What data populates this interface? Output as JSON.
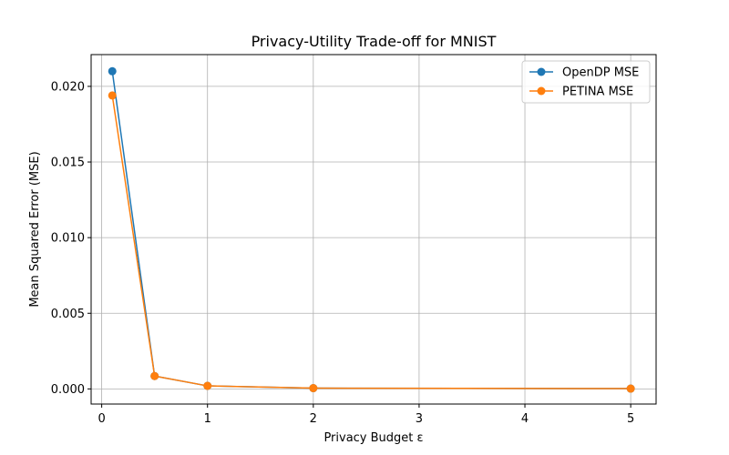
{
  "chart_data": {
    "type": "line",
    "title": "Privacy-Utility Trade-off for MNIST",
    "xlabel": "Privacy Budget ε",
    "ylabel": "Mean Squared Error (MSE)",
    "xlim": [
      -0.1,
      5.24
    ],
    "ylim": [
      -0.001,
      0.0221
    ],
    "xticks": [
      0,
      1,
      2,
      3,
      4,
      5
    ],
    "yticks": [
      0.0,
      0.005,
      0.01,
      0.015,
      0.02
    ],
    "yticklabels": [
      "0.000",
      "0.005",
      "0.010",
      "0.015",
      "0.020"
    ],
    "grid": true,
    "legend_position": "top-right",
    "x": [
      0.1,
      0.5,
      1,
      2,
      5
    ],
    "series": [
      {
        "name": "OpenDP MSE",
        "color": "#1f77b4",
        "values": [
          0.021,
          0.00085,
          0.0002,
          5e-05,
          2e-05
        ]
      },
      {
        "name": "PETINA MSE",
        "color": "#ff7f0e",
        "values": [
          0.0194,
          0.00085,
          0.0002,
          5e-05,
          2e-05
        ]
      }
    ]
  }
}
